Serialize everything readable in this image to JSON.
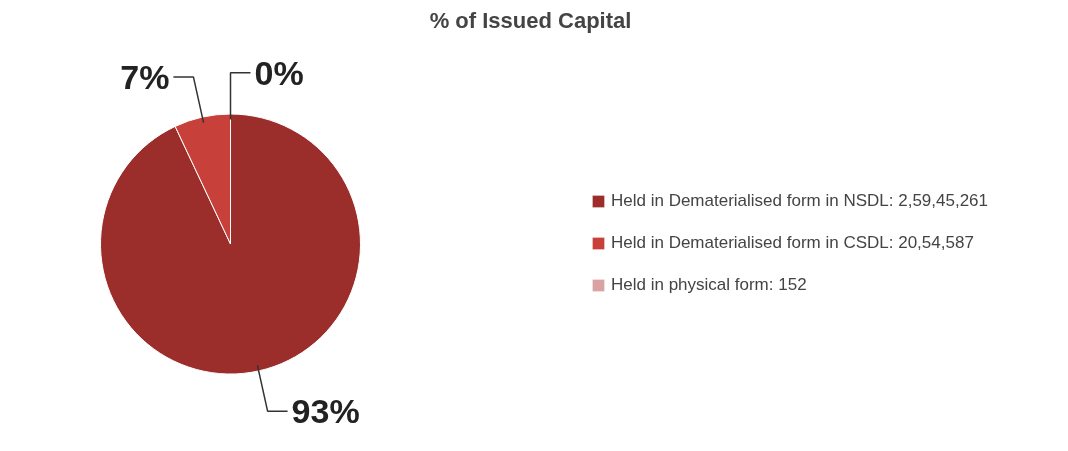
{
  "chart_data": {
    "type": "pie",
    "title": "% of Issued Capital",
    "categories": [
      "Held in Dematerialised form in NSDL: 2,59,45,261",
      "Held in Dematerialised form in CSDL: 20,54,587",
      "Held in physical form: 152"
    ],
    "values": [
      93,
      7,
      0
    ],
    "value_labels": [
      "93%",
      "7%",
      "0%"
    ],
    "colors": [
      "#9b2d2a",
      "#c8403a",
      "#d9a3a3"
    ],
    "legend": "right"
  }
}
